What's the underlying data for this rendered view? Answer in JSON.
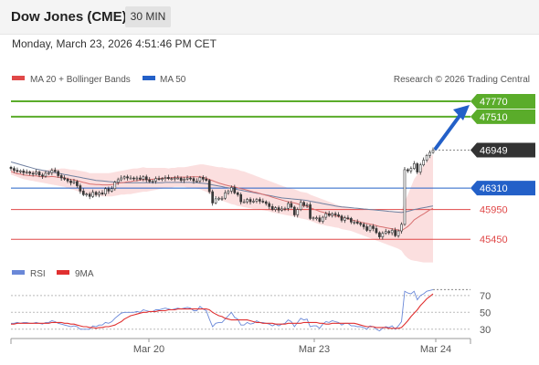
{
  "header": {
    "title": "Dow Jones (CME)",
    "timeframe": "30 MIN",
    "datetime": "Monday, March 23, 2026 4:51:46 PM CET"
  },
  "legend": {
    "ma20_bb": "MA 20 + Bollinger Bands",
    "ma50": "MA 50",
    "copyright": "Research © 2026 Trading Central"
  },
  "rsi_legend": {
    "rsi": "RSI",
    "ma9": "9MA"
  },
  "colors": {
    "green": "#5aac2a",
    "blue": "#2360c8",
    "red": "#e04848",
    "dark": "#333333",
    "bb": "#f6b8b8",
    "ma50": "#7080a0",
    "ma20": "#d87070",
    "rsi": "#6a88d8",
    "rsi_ma": "#e03030"
  },
  "chart_data": [
    {
      "type": "candlestick",
      "title": "",
      "x_ticks": [
        "Mar 20",
        "Mar 23",
        "Mar 24"
      ],
      "ylim": [
        45100,
        48000
      ],
      "price_levels": [
        {
          "label": "47770",
          "value": 47770,
          "kind": "resistance"
        },
        {
          "label": "47510",
          "value": 47510,
          "kind": "resistance"
        },
        {
          "label": "46949",
          "value": 46949,
          "kind": "last"
        },
        {
          "label": "46310",
          "value": 46310,
          "kind": "pivot"
        },
        {
          "label": "45950",
          "value": 45950,
          "kind": "support"
        },
        {
          "label": "45450",
          "value": 45450,
          "kind": "support"
        }
      ],
      "close": [
        46640,
        46610,
        46590,
        46600,
        46570,
        46580,
        46560,
        46550,
        46580,
        46530,
        46510,
        46560,
        46570,
        46610,
        46590,
        46520,
        46480,
        46460,
        46430,
        46400,
        46420,
        46350,
        46260,
        46200,
        46210,
        46170,
        46240,
        46200,
        46230,
        46210,
        46300,
        46260,
        46300,
        46410,
        46450,
        46480,
        46500,
        46480,
        46480,
        46470,
        46480,
        46460,
        46500,
        46450,
        46420,
        46430,
        46470,
        46460,
        46470,
        46490,
        46470,
        46470,
        46480,
        46480,
        46440,
        46460,
        46480,
        46470,
        46430,
        46430,
        46490,
        46460,
        46440,
        46250,
        46060,
        46130,
        46140,
        46140,
        46230,
        46260,
        46320,
        46230,
        46200,
        46080,
        46080,
        46120,
        46080,
        46090,
        46120,
        46090,
        46080,
        46050,
        46000,
        45950,
        45980,
        45940,
        45960,
        45970,
        46050,
        45990,
        45860,
        45950,
        46070,
        46020,
        46030,
        45800,
        45810,
        45810,
        45750,
        45820,
        45880,
        45850,
        45880,
        45860,
        45840,
        45770,
        45810,
        45800,
        45740,
        45740,
        45720,
        45700,
        45660,
        45600,
        45670,
        45630,
        45560,
        45490,
        45550,
        45580,
        45560,
        45600,
        45510,
        45590,
        45700,
        46620,
        46600,
        46640,
        46720,
        46580,
        46700,
        46780,
        46860,
        46910,
        46949
      ],
      "bollinger_upper": [
        46640,
        46620,
        46610,
        46610,
        46600,
        46600,
        46600,
        46600,
        46610,
        46600,
        46600,
        46610,
        46620,
        46640,
        46640,
        46630,
        46640,
        46640,
        46630,
        46620,
        46620,
        46610,
        46600,
        46590,
        46580,
        46560,
        46560,
        46560,
        46560,
        46560,
        46560,
        46560,
        46570,
        46580,
        46590,
        46600,
        46610,
        46620,
        46630,
        46640,
        46640,
        46650,
        46660,
        46650,
        46650,
        46650,
        46650,
        46650,
        46650,
        46650,
        46640,
        46650,
        46650,
        46660,
        46660,
        46660,
        46670,
        46680,
        46690,
        46700,
        46710,
        46710,
        46700,
        46690,
        46680,
        46670,
        46660,
        46660,
        46650,
        46640,
        46640,
        46630,
        46620,
        46600,
        46590,
        46570,
        46550,
        46530,
        46510,
        46490,
        46470,
        46450,
        46430,
        46410,
        46390,
        46370,
        46350,
        46330,
        46310,
        46300,
        46290,
        46270,
        46250,
        46240,
        46230,
        46200,
        46180,
        46160,
        46140,
        46120,
        46100,
        46080,
        46060,
        46040,
        46020,
        46010,
        46000,
        45990,
        45970,
        45960,
        45960,
        45950,
        45940,
        45940,
        45940,
        45940,
        45930,
        45920,
        45920,
        45920,
        45920,
        45920,
        45920,
        45920,
        45930,
        46080,
        46200,
        46330,
        46460,
        46540,
        46620,
        46690,
        46760,
        46830,
        46880
      ],
      "bollinger_lower": [
        46540,
        46520,
        46500,
        46480,
        46460,
        46450,
        46440,
        46430,
        46420,
        46410,
        46400,
        46390,
        46380,
        46370,
        46360,
        46350,
        46340,
        46330,
        46310,
        46290,
        46280,
        46260,
        46240,
        46220,
        46210,
        46200,
        46190,
        46180,
        46180,
        46170,
        46170,
        46170,
        46170,
        46180,
        46190,
        46200,
        46200,
        46210,
        46210,
        46220,
        46230,
        46240,
        46250,
        46250,
        46260,
        46270,
        46280,
        46290,
        46300,
        46310,
        46320,
        46320,
        46330,
        46330,
        46330,
        46330,
        46320,
        46320,
        46310,
        46300,
        46290,
        46270,
        46250,
        46220,
        46190,
        46160,
        46130,
        46100,
        46080,
        46060,
        46040,
        46030,
        46010,
        46000,
        45990,
        45980,
        45970,
        45960,
        45960,
        45950,
        45940,
        45930,
        45920,
        45900,
        45890,
        45880,
        45870,
        45860,
        45850,
        45840,
        45830,
        45820,
        45800,
        45790,
        45780,
        45760,
        45740,
        45720,
        45700,
        45690,
        45680,
        45670,
        45660,
        45650,
        45640,
        45620,
        45610,
        45600,
        45590,
        45570,
        45550,
        45530,
        45510,
        45490,
        45470,
        45450,
        45430,
        45410,
        45390,
        45370,
        45350,
        45330,
        45310,
        45290,
        45260,
        45180,
        45130,
        45100,
        45090,
        45080,
        45070,
        45060,
        45060,
        45060,
        45060
      ],
      "ma20": [
        46590,
        46570,
        46550,
        46545,
        46530,
        46525,
        46520,
        46515,
        46515,
        46505,
        46500,
        46500,
        46500,
        46505,
        46500,
        46490,
        46490,
        46485,
        46470,
        46455,
        46450,
        46435,
        46420,
        46405,
        46395,
        46380,
        46375,
        46370,
        46370,
        46365,
        46365,
        46365,
        46370,
        46380,
        46390,
        46400,
        46405,
        46415,
        46420,
        46430,
        46435,
        46445,
        46455,
        46450,
        46455,
        46460,
        46465,
        46470,
        46475,
        46480,
        46480,
        46485,
        46490,
        46495,
        46495,
        46495,
        46495,
        46500,
        46500,
        46500,
        46500,
        46490,
        46475,
        46455,
        46435,
        46415,
        46395,
        46380,
        46365,
        46350,
        46340,
        46330,
        46315,
        46300,
        46290,
        46275,
        46260,
        46245,
        46235,
        46220,
        46205,
        46190,
        46175,
        46155,
        46140,
        46125,
        46110,
        46095,
        46080,
        46070,
        46060,
        46045,
        46025,
        46015,
        46005,
        45980,
        45960,
        45940,
        45920,
        45905,
        45890,
        45875,
        45860,
        45845,
        45830,
        45815,
        45805,
        45795,
        45780,
        45765,
        45755,
        45740,
        45725,
        45715,
        45705,
        45695,
        45680,
        45665,
        45655,
        45645,
        45635,
        45625,
        45615,
        45605,
        45595,
        45630,
        45665,
        45715,
        45775,
        45810,
        45845,
        45875,
        45910,
        45945,
        45970
      ],
      "ma50": [
        46750,
        46735,
        46720,
        46705,
        46690,
        46675,
        46660,
        46645,
        46630,
        46620,
        46610,
        46600,
        46590,
        46580,
        46570,
        46560,
        46550,
        46540,
        46530,
        46520,
        46510,
        46500,
        46490,
        46480,
        46470,
        46460,
        46450,
        46440,
        46435,
        46430,
        46425,
        46420,
        46415,
        46410,
        46405,
        46400,
        46400,
        46400,
        46400,
        46400,
        46400,
        46400,
        46400,
        46400,
        46400,
        46400,
        46400,
        46400,
        46400,
        46405,
        46405,
        46405,
        46405,
        46405,
        46405,
        46405,
        46405,
        46405,
        46400,
        46400,
        46395,
        46390,
        46385,
        46375,
        46365,
        46355,
        46345,
        46335,
        46325,
        46315,
        46305,
        46295,
        46285,
        46275,
        46265,
        46255,
        46245,
        46235,
        46225,
        46215,
        46205,
        46195,
        46185,
        46175,
        46165,
        46155,
        46145,
        46140,
        46135,
        46130,
        46125,
        46120,
        46115,
        46110,
        46100,
        46090,
        46080,
        46070,
        46060,
        46050,
        46040,
        46030,
        46020,
        46010,
        46000,
        45995,
        45990,
        45985,
        45980,
        45975,
        45970,
        45965,
        45960,
        45955,
        45950,
        45945,
        45940,
        45935,
        45930,
        45925,
        45920,
        45915,
        45910,
        45905,
        45900,
        45910,
        45920,
        45935,
        45950,
        45960,
        45970,
        45980,
        45990,
        46000,
        46010
      ]
    },
    {
      "type": "line",
      "title": "",
      "series": [
        {
          "name": "RSI",
          "values": [
            37,
            37,
            38,
            37,
            38,
            38,
            37,
            37,
            38,
            37,
            36,
            38,
            38,
            40,
            39,
            37,
            36,
            35,
            34,
            33,
            34,
            33,
            30,
            30,
            30,
            30,
            34,
            33,
            35,
            35,
            38,
            37,
            39,
            43,
            46,
            49,
            50,
            50,
            50,
            50,
            51,
            50,
            53,
            52,
            51,
            51,
            53,
            53,
            54,
            55,
            54,
            53,
            54,
            55,
            54,
            55,
            56,
            55,
            52,
            52,
            57,
            54,
            52,
            42,
            33,
            37,
            38,
            38,
            42,
            46,
            50,
            44,
            42,
            35,
            35,
            38,
            36,
            37,
            40,
            38,
            38,
            37,
            36,
            34,
            36,
            34,
            36,
            37,
            41,
            39,
            33,
            38,
            43,
            41,
            42,
            33,
            34,
            34,
            31,
            36,
            39,
            38,
            40,
            39,
            38,
            35,
            37,
            37,
            34,
            34,
            33,
            33,
            32,
            30,
            34,
            33,
            30,
            28,
            31,
            33,
            32,
            34,
            30,
            34,
            39,
            75,
            73,
            72,
            75,
            65,
            70,
            72,
            75,
            76,
            77
          ]
        },
        {
          "name": "9MA",
          "values": [
            36,
            36,
            37,
            37,
            37,
            37,
            37,
            37,
            37,
            37,
            37,
            37,
            37,
            38,
            38,
            38,
            38,
            37,
            37,
            36,
            36,
            35,
            34,
            33,
            33,
            32,
            32,
            31,
            32,
            32,
            33,
            33,
            34,
            35,
            37,
            39,
            42,
            44,
            46,
            47,
            48,
            49,
            50,
            50,
            51,
            51,
            51,
            52,
            52,
            52,
            53,
            53,
            53,
            54,
            54,
            54,
            54,
            54,
            54,
            54,
            54,
            54,
            54,
            53,
            50,
            48,
            46,
            45,
            43,
            42,
            41,
            41,
            41,
            41,
            41,
            41,
            40,
            39,
            38,
            38,
            37,
            37,
            37,
            37,
            36,
            36,
            36,
            36,
            37,
            37,
            37,
            37,
            37,
            38,
            38,
            38,
            38,
            38,
            37,
            37,
            36,
            36,
            37,
            37,
            37,
            37,
            37,
            37,
            37,
            37,
            36,
            35,
            34,
            33,
            33,
            33,
            32,
            32,
            32,
            32,
            31,
            31,
            31,
            31,
            32,
            36,
            40,
            45,
            49,
            53,
            58,
            62,
            66,
            69,
            72
          ]
        }
      ],
      "y_ticks": [
        30,
        50,
        70
      ],
      "ylim": [
        20,
        85
      ]
    }
  ]
}
